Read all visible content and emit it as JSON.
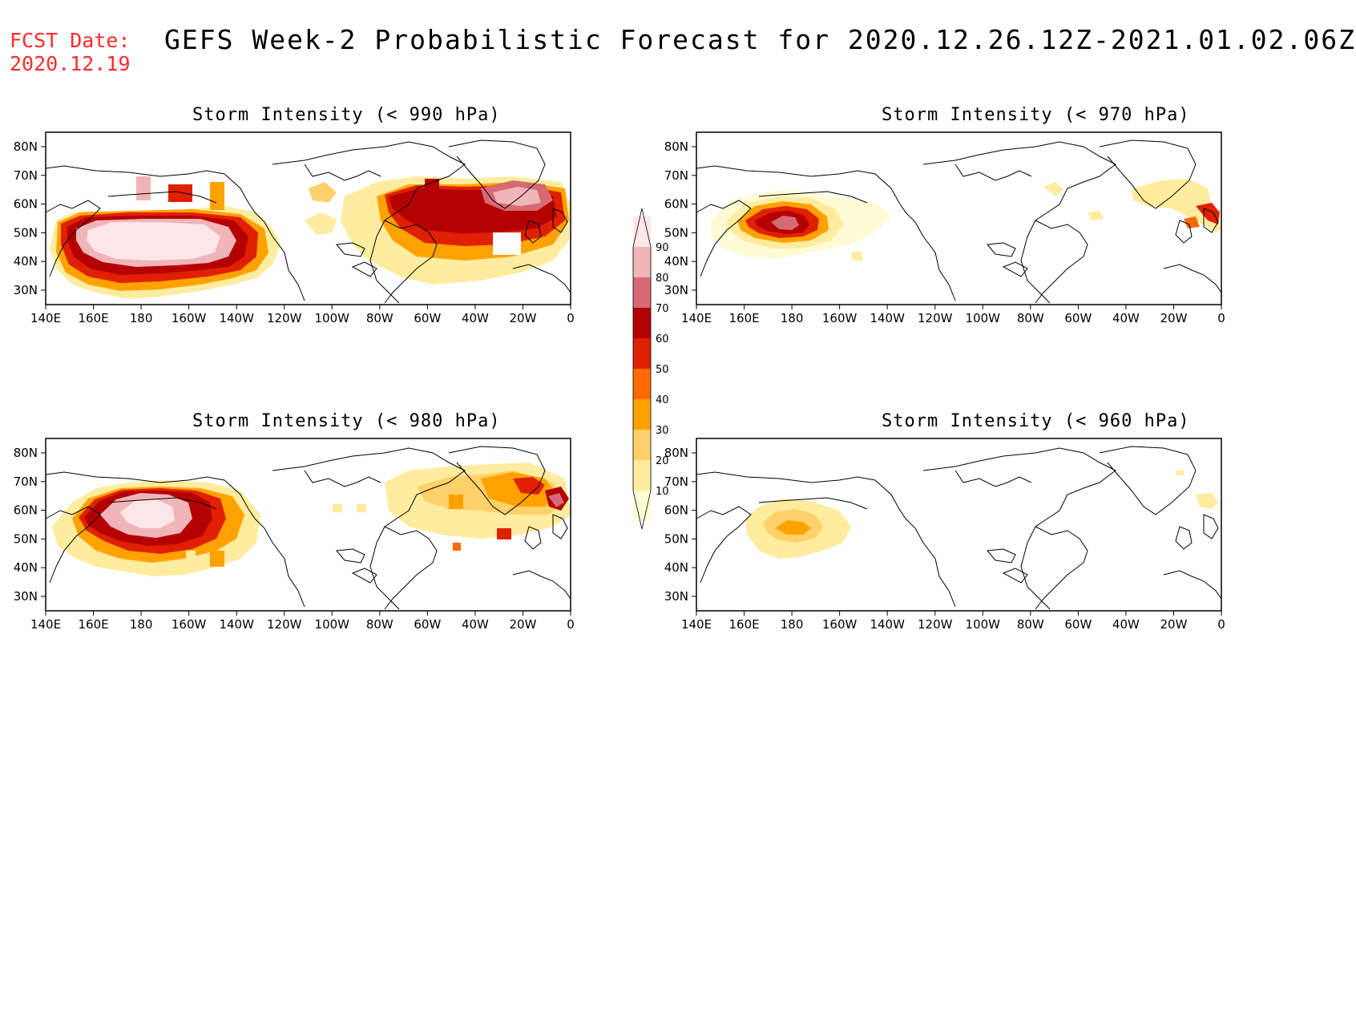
{
  "header": {
    "fcst_label": "FCST Date:",
    "fcst_date": "2020.12.19",
    "title": "GEFS Week-2 Probabilistic Forecast for 2020.12.26.12Z-2021.01.02.06Z"
  },
  "axes": {
    "x_ticks": [
      "140E",
      "160E",
      "180",
      "160W",
      "140W",
      "120W",
      "100W",
      "80W",
      "60W",
      "40W",
      "20W",
      "0"
    ],
    "y_ticks": [
      "80N",
      "70N",
      "60N",
      "50N",
      "40N",
      "30N"
    ]
  },
  "colorbar": {
    "levels": [
      "10",
      "20",
      "30",
      "40",
      "50",
      "60",
      "70",
      "80",
      "90"
    ],
    "colors": [
      "#fffbd5",
      "#ffec9e",
      "#ffd16a",
      "#ffa200",
      "#ff6a00",
      "#e02000",
      "#b40000",
      "#d66a74",
      "#f0b4b9",
      "#fde6e8"
    ]
  },
  "panels": [
    {
      "title": "Storm Intensity (< 990 hPa)"
    },
    {
      "title": "Storm Intensity (< 970 hPa)"
    },
    {
      "title": "Storm Intensity (< 980 hPa)"
    },
    {
      "title": "Storm Intensity (< 960 hPa)"
    }
  ]
}
